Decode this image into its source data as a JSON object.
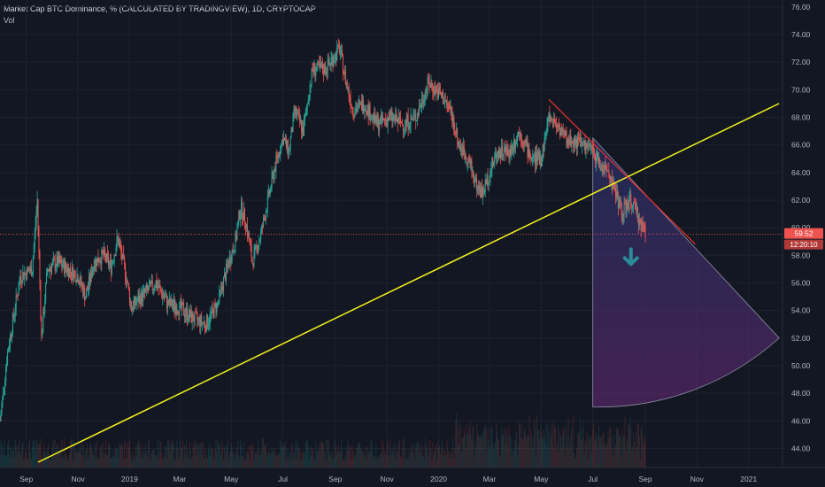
{
  "header": {
    "title": "Market Cap BTC Dominance, % (CALCULATED BY TRADINGVIEW), 1D, CRYPTOCAP",
    "volume_label": "Vol"
  },
  "price_tag": {
    "value": "59.52",
    "countdown": "12:20:10"
  },
  "colors": {
    "background": "#131722",
    "up": "#26a69a",
    "down": "#ef5350",
    "grid": "#1e2230",
    "support_line": "#f2f21c",
    "resistance_line": "#e2302f",
    "price_line": "#ef5350",
    "arrow": "#2b8c99",
    "axis_text": "#b2b5be"
  },
  "chart_data": {
    "type": "candlestick",
    "title": "Market Cap BTC Dominance, % (CALCULATED BY TRADINGVIEW), 1D, CRYPTOCAP",
    "x_ticks": [
      "Sep",
      "Nov",
      "2019",
      "Mar",
      "May",
      "Jul",
      "Sep",
      "Nov",
      "2020",
      "Mar",
      "May",
      "Jul",
      "Sep",
      "Nov",
      "2021"
    ],
    "y_ticks": [
      "76.00",
      "74.00",
      "72.00",
      "70.00",
      "68.00",
      "66.00",
      "64.00",
      "62.00",
      "60.00",
      "58.00",
      "56.00",
      "54.00",
      "52.00",
      "50.00",
      "48.00",
      "46.00",
      "44.00"
    ],
    "ylim": [
      43,
      76.5
    ],
    "xlim": [
      "2018-08-01",
      "2021-02-10"
    ],
    "last_value": 59.52,
    "grid": true,
    "price_path": [
      [
        "2018-08-01",
        46.0
      ],
      [
        "2018-08-10",
        51.0
      ],
      [
        "2018-08-25",
        56.5
      ],
      [
        "2018-09-08",
        57.0
      ],
      [
        "2018-09-14",
        62.0
      ],
      [
        "2018-09-19",
        52.0
      ],
      [
        "2018-09-26",
        57.0
      ],
      [
        "2018-10-08",
        57.5
      ],
      [
        "2018-10-20",
        57.0
      ],
      [
        "2018-11-01",
        56.5
      ],
      [
        "2018-11-10",
        55.0
      ],
      [
        "2018-11-20",
        57.5
      ],
      [
        "2018-12-01",
        58.0
      ],
      [
        "2018-12-10",
        57.2
      ],
      [
        "2018-12-18",
        59.2
      ],
      [
        "2018-12-28",
        56.5
      ],
      [
        "2019-01-03",
        54.2
      ],
      [
        "2019-01-15",
        55.0
      ],
      [
        "2019-02-01",
        56.0
      ],
      [
        "2019-02-15",
        54.5
      ],
      [
        "2019-03-01",
        54.2
      ],
      [
        "2019-03-15",
        53.5
      ],
      [
        "2019-04-01",
        53.0
      ],
      [
        "2019-04-15",
        54.5
      ],
      [
        "2019-04-28",
        57.5
      ],
      [
        "2019-05-06",
        59.0
      ],
      [
        "2019-05-12",
        61.5
      ],
      [
        "2019-05-18",
        60.5
      ],
      [
        "2019-05-26",
        57.5
      ],
      [
        "2019-06-05",
        59.5
      ],
      [
        "2019-06-15",
        62.5
      ],
      [
        "2019-06-22",
        64.5
      ],
      [
        "2019-07-01",
        66.5
      ],
      [
        "2019-07-08",
        65.5
      ],
      [
        "2019-07-15",
        68.5
      ],
      [
        "2019-07-25",
        67.0
      ],
      [
        "2019-08-05",
        71.5
      ],
      [
        "2019-08-20",
        71.5
      ],
      [
        "2019-09-01",
        72.5
      ],
      [
        "2019-09-06",
        73.0
      ],
      [
        "2019-09-12",
        71.0
      ],
      [
        "2019-09-22",
        68.5
      ],
      [
        "2019-10-05",
        69.0
      ],
      [
        "2019-10-20",
        67.5
      ],
      [
        "2019-11-05",
        68.0
      ],
      [
        "2019-11-20",
        67.5
      ],
      [
        "2019-12-05",
        68.0
      ],
      [
        "2019-12-20",
        70.5
      ],
      [
        "2020-01-05",
        69.5
      ],
      [
        "2020-01-15",
        68.5
      ],
      [
        "2020-01-25",
        66.0
      ],
      [
        "2020-02-05",
        65.0
      ],
      [
        "2020-02-15",
        63.0
      ],
      [
        "2020-02-22",
        62.5
      ],
      [
        "2020-03-01",
        64.0
      ],
      [
        "2020-03-10",
        65.5
      ],
      [
        "2020-03-25",
        65.5
      ],
      [
        "2020-04-05",
        67.0
      ],
      [
        "2020-04-20",
        65.0
      ],
      [
        "2020-05-01",
        65.0
      ],
      [
        "2020-05-10",
        68.0
      ],
      [
        "2020-05-20",
        67.5
      ],
      [
        "2020-06-01",
        66.3
      ],
      [
        "2020-06-15",
        66.2
      ],
      [
        "2020-07-01",
        65.5
      ],
      [
        "2020-07-10",
        64.5
      ],
      [
        "2020-07-20",
        64.0
      ],
      [
        "2020-07-28",
        62.5
      ],
      [
        "2020-08-05",
        61.0
      ],
      [
        "2020-08-15",
        62.0
      ],
      [
        "2020-08-25",
        60.5
      ],
      [
        "2020-09-02",
        59.5
      ]
    ],
    "annotations": {
      "support_line": {
        "from": [
          "2018-09-15",
          43.0
        ],
        "to": [
          "2021-02-06",
          69.0
        ]
      },
      "resistance_line": {
        "from": [
          "2020-05-10",
          69.3
        ],
        "to": [
          "2020-10-30",
          58.8
        ]
      },
      "price_line_value": 59.52,
      "projection_sector": {
        "apex": [
          "2020-07-01",
          66.5
        ],
        "bottom": [
          "2020-07-01",
          47.0
        ],
        "right": [
          "2021-02-06",
          52.0
        ]
      },
      "down_arrow_at": [
        "2020-08-15",
        57.8
      ]
    }
  }
}
